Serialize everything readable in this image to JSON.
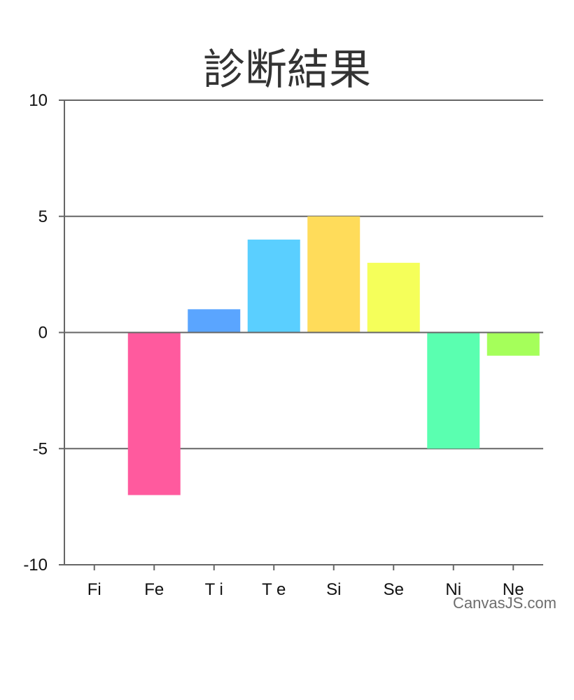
{
  "chart_data": {
    "type": "bar",
    "title": "診断結果",
    "categories": [
      "Fi",
      "Fe",
      "T i",
      "T e",
      "Si",
      "Se",
      "Ni",
      "Ne"
    ],
    "values": [
      0,
      -7,
      1,
      4,
      5,
      3,
      -5,
      -1
    ],
    "colors": [
      "#ffffff",
      "#ff5a9e",
      "#5aa5ff",
      "#5acfff",
      "#ffdc5a",
      "#f5ff5a",
      "#5affb0",
      "#a5ff5a"
    ],
    "ylim": [
      -10,
      10
    ],
    "yticks": [
      10,
      5,
      0,
      -5,
      -10
    ],
    "xlabel": "",
    "ylabel": "",
    "grid": true,
    "axis_color": "#666666"
  },
  "credit": "CanvasJS.com"
}
